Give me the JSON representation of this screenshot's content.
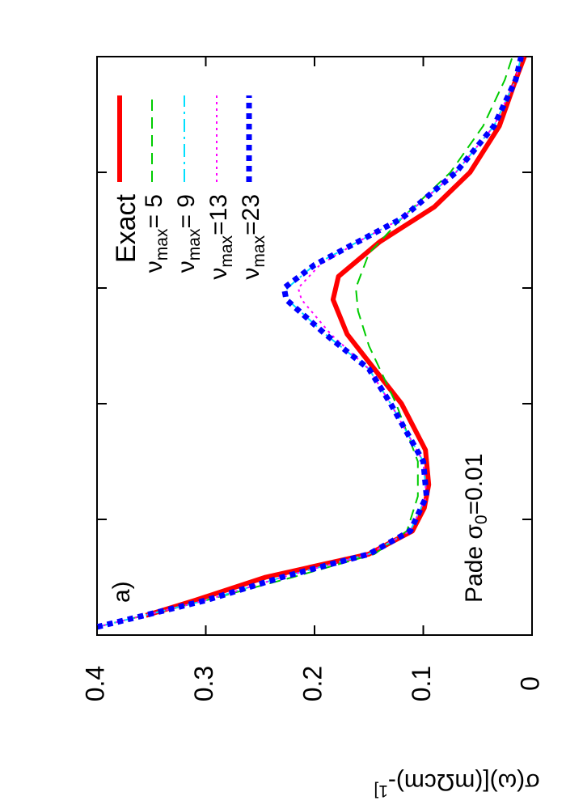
{
  "chart_data": {
    "type": "line",
    "ylabel": "σ(ω)[(mΩcm)-1]",
    "annotations": [
      "a)",
      "Pade σ0=0.01"
    ],
    "xlim": [
      0,
      5
    ],
    "xticks": [
      1,
      2,
      3,
      4
    ],
    "ylim": [
      0,
      0.4
    ],
    "yticks": [
      0,
      0.1,
      0.2,
      0.3,
      0.4
    ],
    "series": [
      {
        "name": "Exact",
        "color": "#ff0000",
        "x": [
          0.17,
          0.3,
          0.5,
          0.7,
          0.9,
          1.1,
          1.3,
          1.6,
          2.0,
          2.3,
          2.6,
          2.9,
          3.1,
          3.4,
          3.7,
          4.0,
          4.4,
          4.8,
          5.0
        ],
        "values": [
          0.355,
          0.31,
          0.245,
          0.15,
          0.11,
          0.099,
          0.095,
          0.098,
          0.12,
          0.145,
          0.17,
          0.183,
          0.178,
          0.14,
          0.09,
          0.057,
          0.03,
          0.015,
          0.007
        ]
      },
      {
        "name": "νmax= 5",
        "color": "#00cc00",
        "x": [
          0.07,
          0.3,
          0.5,
          0.7,
          0.9,
          1.2,
          1.5,
          2.0,
          2.5,
          2.8,
          3.0,
          3.3,
          3.6,
          4.0,
          4.4,
          4.8,
          5.0
        ],
        "values": [
          0.4,
          0.3,
          0.22,
          0.145,
          0.115,
          0.105,
          0.105,
          0.125,
          0.15,
          0.16,
          0.162,
          0.15,
          0.12,
          0.075,
          0.045,
          0.025,
          0.018
        ]
      },
      {
        "name": "νmax= 9",
        "color": "#00e0ff",
        "x": [
          0.07,
          0.3,
          0.5,
          0.7,
          0.9,
          1.2,
          1.5,
          2.0,
          2.3,
          2.6,
          2.9,
          3.0,
          3.2,
          3.4,
          3.6,
          4.0,
          4.4,
          4.8,
          5.0
        ],
        "values": [
          0.4,
          0.3,
          0.23,
          0.15,
          0.112,
          0.097,
          0.1,
          0.13,
          0.15,
          0.19,
          0.225,
          0.225,
          0.2,
          0.16,
          0.12,
          0.07,
          0.035,
          0.015,
          0.01
        ]
      },
      {
        "name": "νmax=13",
        "color": "#ff00ff",
        "x": [
          0.07,
          0.3,
          0.5,
          0.7,
          0.9,
          1.2,
          1.5,
          2.0,
          2.3,
          2.6,
          2.9,
          3.0,
          3.2,
          3.4,
          3.6,
          4.0,
          4.4,
          4.8,
          5.0
        ],
        "values": [
          0.4,
          0.3,
          0.23,
          0.15,
          0.112,
          0.097,
          0.1,
          0.13,
          0.15,
          0.185,
          0.212,
          0.215,
          0.195,
          0.16,
          0.12,
          0.07,
          0.035,
          0.015,
          0.01
        ]
      },
      {
        "name": "νmax=23",
        "color": "#0000ff",
        "x": [
          0.07,
          0.3,
          0.5,
          0.7,
          0.9,
          1.2,
          1.5,
          2.0,
          2.3,
          2.6,
          2.9,
          3.0,
          3.2,
          3.4,
          3.6,
          4.0,
          4.4,
          4.8,
          5.0
        ],
        "values": [
          0.4,
          0.3,
          0.23,
          0.15,
          0.112,
          0.097,
          0.1,
          0.13,
          0.15,
          0.19,
          0.226,
          0.228,
          0.2,
          0.16,
          0.12,
          0.07,
          0.035,
          0.015,
          0.01
        ]
      }
    ]
  }
}
